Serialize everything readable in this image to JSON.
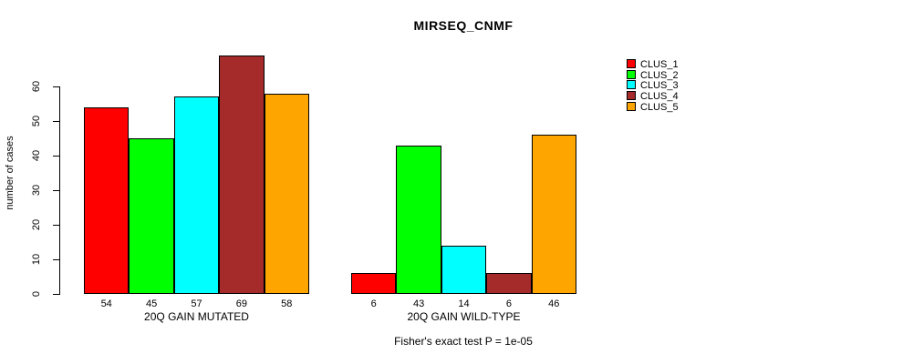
{
  "chart_data": {
    "type": "bar",
    "title": "MIRSEQ_CNMF",
    "ylabel": "number of cases",
    "ylim": [
      0,
      60
    ],
    "yticks": [
      0,
      10,
      20,
      30,
      40,
      50,
      60
    ],
    "grid": false,
    "legend_position": "right",
    "groups": [
      {
        "label": "20Q GAIN MUTATED",
        "values": [
          54,
          45,
          57,
          69,
          58
        ]
      },
      {
        "label": "20Q GAIN WILD-TYPE",
        "values": [
          6,
          43,
          14,
          6,
          46
        ]
      }
    ],
    "series": [
      {
        "name": "CLUS_1",
        "color": "#FF0000"
      },
      {
        "name": "CLUS_2",
        "color": "#00FF00"
      },
      {
        "name": "CLUS_3",
        "color": "#00FFFF"
      },
      {
        "name": "CLUS_4",
        "color": "#A52A2A"
      },
      {
        "name": "CLUS_5",
        "color": "#FFA500"
      }
    ],
    "footer": "Fisher's exact test P = 1e-05"
  }
}
